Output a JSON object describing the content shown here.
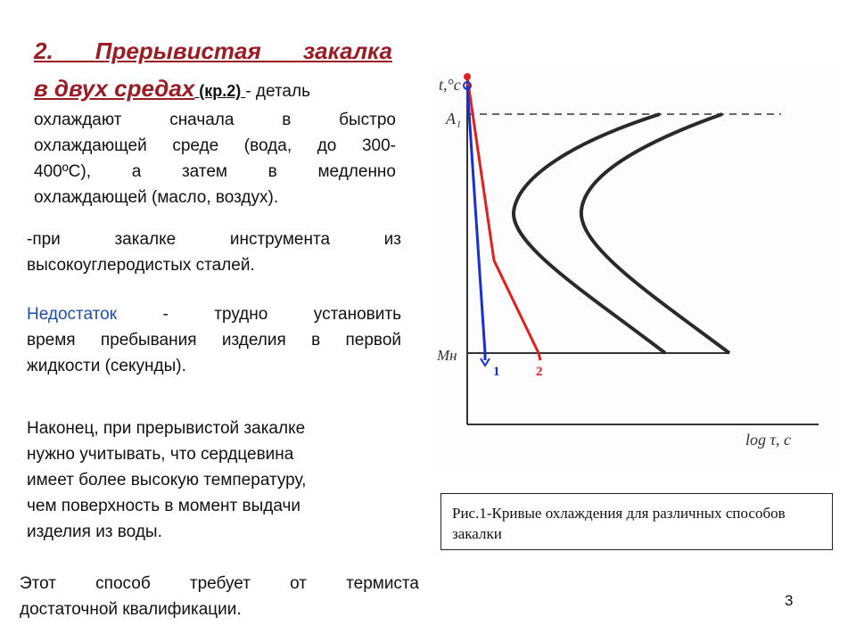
{
  "heading": {
    "line1": "2. Прерывистая закалка",
    "line2_title": "в двух средах",
    "ref": " (кр.2) ",
    "line2_rest": "- деталь"
  },
  "intro_lines": [
    "охлаждают сначала в быстро",
    "охлаждающей среде (вода, до 300-",
    "400ºС), а затем в медленно",
    "охлаждающей (масло, воздух)."
  ],
  "tool_lines": [
    "-при закалке инструмента из",
    "высокоуглеродистых сталей."
  ],
  "drawback": {
    "label": "Недостаток",
    "line1_rest": " - трудно установить",
    "line2": "время пребывания изделия в первой",
    "line3": "жидкости (секунды)."
  },
  "core_lines": [
    "Наконец, при прерывистой закалке",
    "нужно учитывать, что сердцевина",
    "имеет более высокую температуру,",
    "чем поверхность в момент выдачи",
    "изделия из воды."
  ],
  "qualify_lines": [
    "Этот способ требует от термиста",
    "достаточной квалификации."
  ],
  "diagram": {
    "y_axis_label": "t,°c",
    "a1_label": "A₁",
    "mh_label": "Mн",
    "x_axis_label": "log τ, c",
    "curve1_label": "1",
    "curve2_label": "2",
    "colors": {
      "curve1": "#1a2fd0",
      "curve2": "#e02020",
      "ccurve": "#2a2a2a"
    }
  },
  "caption": "Рис.1-Кривые охлаждения для различных способов закалки",
  "page_number": "3"
}
